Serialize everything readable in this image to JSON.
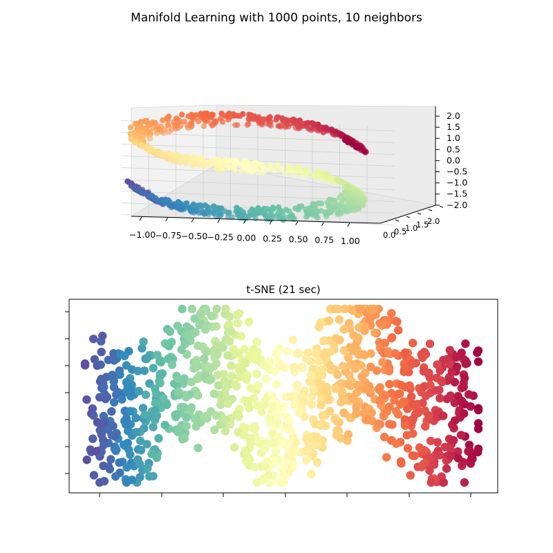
{
  "figure": {
    "suptitle": "Manifold Learning with 1000 points, 10 neighbors"
  },
  "chart_data": [
    {
      "type": "scatter",
      "projection": "3d",
      "title": "",
      "colormap": "Spectral",
      "n_points": 1000,
      "dataset": "S-curve",
      "x_ticks": [
        "−1.00",
        "−0.75",
        "−0.50",
        "−0.25",
        "0.00",
        "0.25",
        "0.50",
        "0.75",
        "1.00"
      ],
      "y_ticks": [
        "0.0",
        "0.5",
        "1.0",
        "1.5",
        "2.0"
      ],
      "z_ticks": [
        "2.0",
        "1.5",
        "1.0",
        "0.5",
        "0.0",
        "−0.5",
        "−1.0",
        "−1.5",
        "−2.0"
      ],
      "xlim": [
        -1,
        1
      ],
      "ylim": [
        0,
        2
      ],
      "zlim": [
        -2,
        2
      ],
      "grid": true,
      "colors": [
        "#9e0142",
        "#d53e4f",
        "#f46d43",
        "#fdae61",
        "#fee08b",
        "#ffffbf",
        "#e6f598",
        "#abdda4",
        "#66c2a5",
        "#3288bd",
        "#5e4fa2"
      ]
    },
    {
      "type": "scatter",
      "title": "t-SNE (21 sec)",
      "colormap": "Spectral",
      "n_points": 1000,
      "x_ticks_labeled": false,
      "y_ticks_labeled": false,
      "grid": false
    }
  ]
}
